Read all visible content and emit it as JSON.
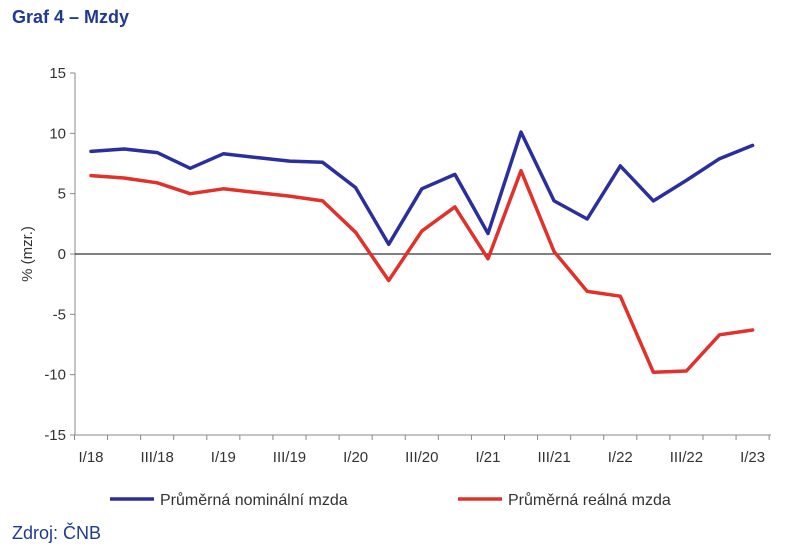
{
  "title": "Graf 4 – Mzdy",
  "source": "Zdroj: ČNB",
  "chart_data": {
    "type": "line",
    "ylabel": "% (mzr.)",
    "ylim": [
      -15,
      15
    ],
    "yticks": [
      15,
      10,
      5,
      0,
      -5,
      -10,
      -15
    ],
    "x_tick_labels": [
      "I/18",
      "III/18",
      "I/19",
      "III/19",
      "I/20",
      "III/20",
      "I/21",
      "III/21",
      "I/22",
      "III/22",
      "I/23"
    ],
    "categories": [
      "I/18",
      "II/18",
      "III/18",
      "IV/18",
      "I/19",
      "II/19",
      "III/19",
      "IV/19",
      "I/20",
      "II/20",
      "III/20",
      "IV/20",
      "I/21",
      "II/21",
      "III/21",
      "IV/21",
      "I/22",
      "II/22",
      "III/22",
      "IV/22",
      "I/23"
    ],
    "series": [
      {
        "name": "Průměrná nominální mzda",
        "color": "#2b2f9e",
        "values": [
          8.5,
          8.7,
          8.4,
          7.1,
          8.3,
          8.0,
          7.7,
          7.6,
          5.5,
          0.8,
          5.4,
          6.6,
          1.7,
          10.1,
          4.4,
          2.9,
          7.3,
          4.4,
          6.1,
          7.9,
          9.0
        ]
      },
      {
        "name": "Průměrná reálná mzda",
        "color": "#e0312b",
        "values": [
          6.5,
          6.3,
          5.9,
          5.0,
          5.4,
          5.1,
          4.8,
          4.4,
          1.8,
          -2.2,
          1.9,
          3.9,
          -0.4,
          6.9,
          0.2,
          -3.1,
          -3.5,
          -9.8,
          -9.7,
          -6.7,
          -6.3
        ]
      }
    ],
    "legend_position": "bottom",
    "grid": false
  }
}
